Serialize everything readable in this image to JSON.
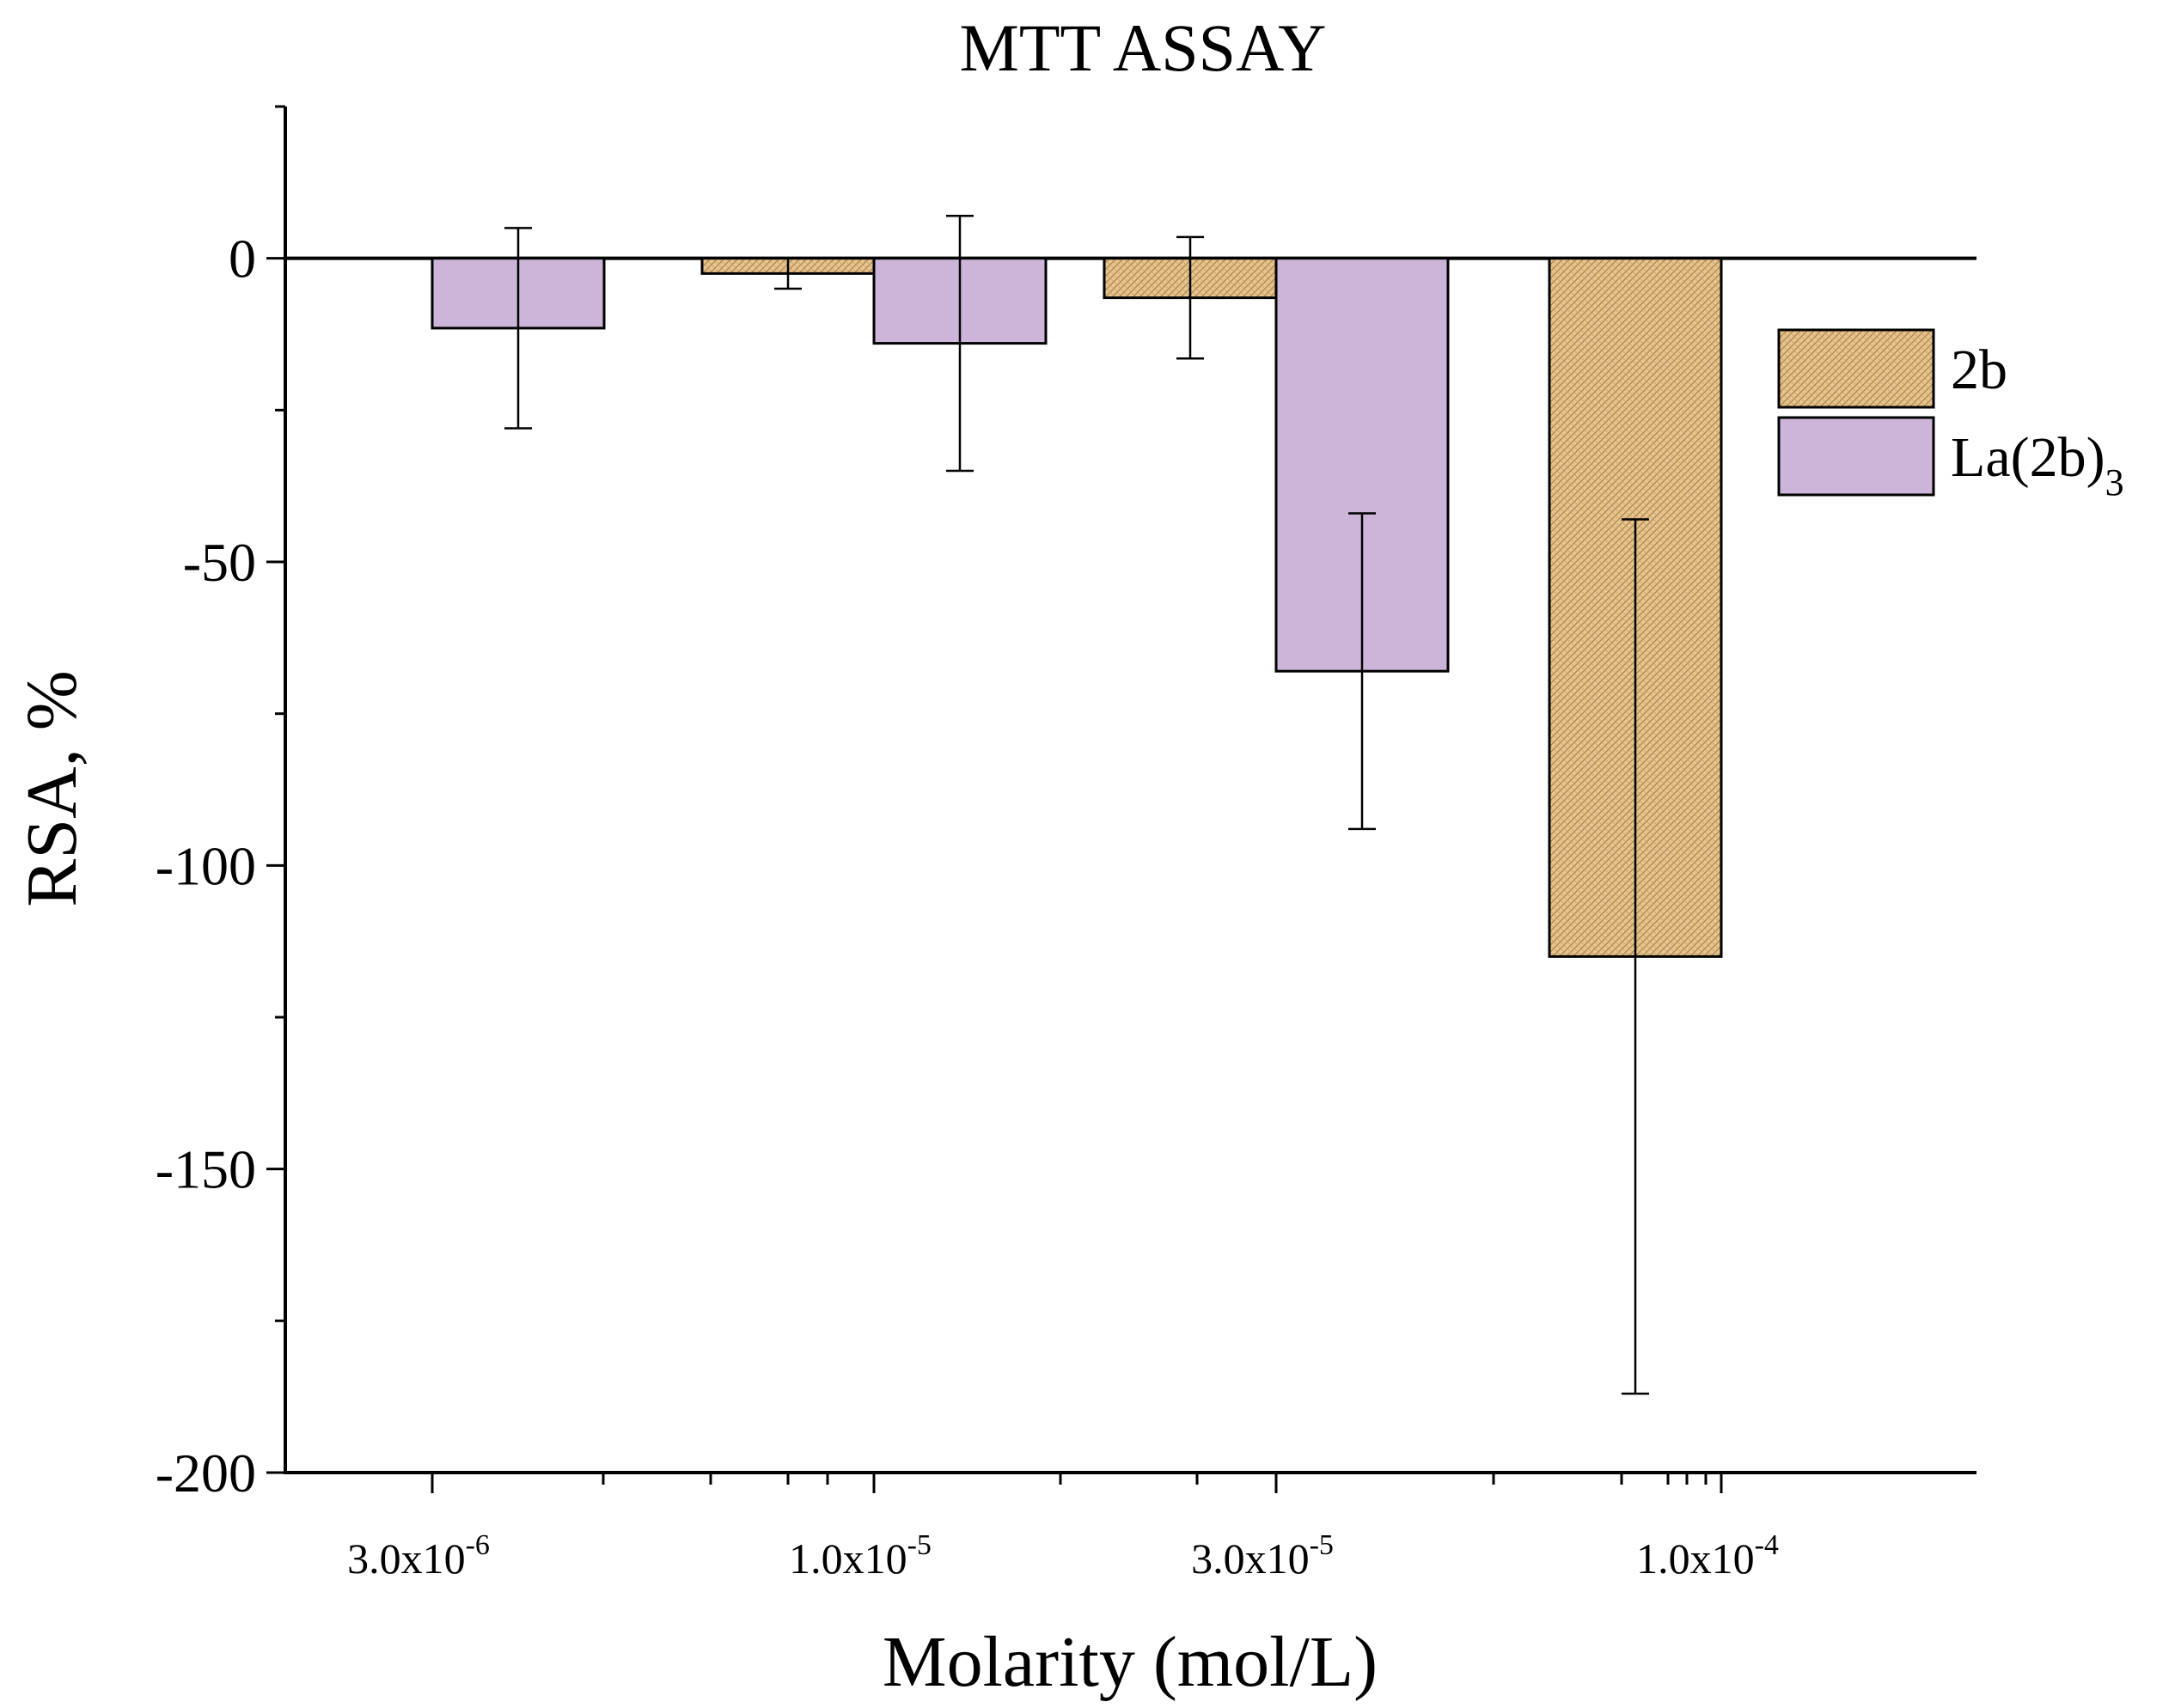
{
  "chart_data": {
    "type": "bar",
    "title": "MTT ASSAY",
    "xlabel": "Molarity (mol/L)",
    "ylabel": "RSA, %",
    "ylim": [
      -200,
      25
    ],
    "yticks": [
      "0",
      "-50",
      "-100",
      "-150",
      "-200"
    ],
    "categories": [
      {
        "base": "3.0x10",
        "exponent": "-6"
      },
      {
        "base": "1.0x10",
        "exponent": "-5"
      },
      {
        "base": "3.0x10",
        "exponent": "-5"
      },
      {
        "base": "1.0x10",
        "exponent": "-4"
      }
    ],
    "series": [
      {
        "name": "2b",
        "name_sub": "",
        "color": "#e8c590",
        "pattern": "crosshatch",
        "values": [
          null,
          -2.5,
          -6.5,
          -115
        ],
        "errors": [
          null,
          2.5,
          10,
          72
        ]
      },
      {
        "name": "La(2b)",
        "name_sub": "3",
        "color": "#cdb5da",
        "pattern": "solid",
        "values": [
          -11.5,
          -14,
          -68,
          null
        ],
        "errors": [
          16.5,
          21,
          26,
          null
        ]
      }
    ],
    "legend_position": "top-right",
    "grid": false
  }
}
